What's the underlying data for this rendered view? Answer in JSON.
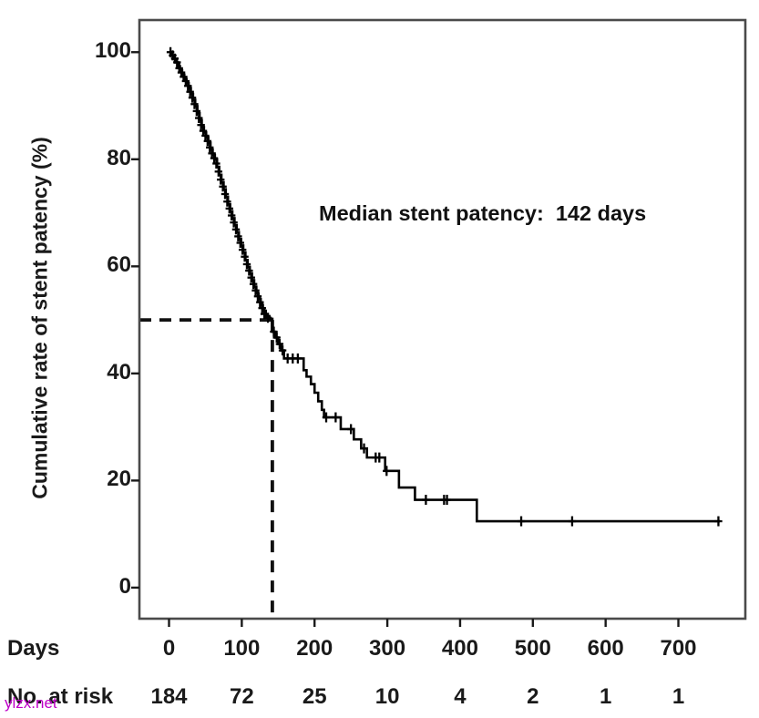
{
  "figure": {
    "y_axis_title": "Cumulative rate of stent patency (%)",
    "x_axis_row_label": "Days",
    "risk_row_label": "No. at risk",
    "annotation": "Median stent patency:  142 days",
    "watermark": "ylzx.net",
    "colors": {
      "curve": "#000000",
      "border": "#4a4a4a",
      "tick": "#1a1a1a",
      "dash": "#111111",
      "text": "#1a1a1a",
      "watermark": "#bf00c8",
      "background": "#ffffff"
    }
  },
  "chart_data": {
    "type": "line",
    "subtype": "kaplan-meier-step",
    "title": "",
    "xlabel": "Days",
    "ylabel": "Cumulative rate of stent patency (%)",
    "legend": "none",
    "grid": false,
    "xlim": [
      -40.7,
      792
    ],
    "ylim": [
      -5.8,
      106
    ],
    "x_ticks": [
      0,
      100,
      200,
      300,
      400,
      500,
      600,
      700
    ],
    "y_ticks": [
      0,
      20,
      40,
      60,
      80,
      100
    ],
    "median_day": 142,
    "median_pct": 50,
    "curve_end_day": 757,
    "steps": [
      [
        0,
        100
      ],
      [
        3,
        99.4
      ],
      [
        6,
        98.8
      ],
      [
        9,
        98.1
      ],
      [
        12,
        97.4
      ],
      [
        15,
        96.6
      ],
      [
        18,
        95.8
      ],
      [
        21,
        95.0
      ],
      [
        24,
        94.2
      ],
      [
        27,
        93.3
      ],
      [
        30,
        92.2
      ],
      [
        33,
        91.1
      ],
      [
        36,
        89.9
      ],
      [
        39,
        88.6
      ],
      [
        42,
        87.3
      ],
      [
        45,
        86.0
      ],
      [
        48,
        85.0
      ],
      [
        51,
        84.1
      ],
      [
        54,
        83.1
      ],
      [
        57,
        81.8
      ],
      [
        60,
        80.8
      ],
      [
        63,
        80.0
      ],
      [
        66,
        78.6
      ],
      [
        69,
        77.1
      ],
      [
        72,
        75.7
      ],
      [
        75,
        74.4
      ],
      [
        78,
        73.0
      ],
      [
        81,
        71.6
      ],
      [
        84,
        70.3
      ],
      [
        87,
        69.0
      ],
      [
        90,
        67.7
      ],
      [
        93,
        66.4
      ],
      [
        96,
        65.1
      ],
      [
        99,
        63.9
      ],
      [
        102,
        62.6
      ],
      [
        105,
        61.2
      ],
      [
        108,
        59.9
      ],
      [
        111,
        58.7
      ],
      [
        114,
        57.4
      ],
      [
        117,
        56.2
      ],
      [
        120,
        55.0
      ],
      [
        123,
        53.9
      ],
      [
        126,
        52.8
      ],
      [
        129,
        51.7
      ],
      [
        133,
        50.7
      ],
      [
        138,
        50.2
      ],
      [
        142,
        47.8
      ],
      [
        146,
        46.7
      ],
      [
        150,
        45.5
      ],
      [
        154,
        44.3
      ],
      [
        158,
        42.8
      ],
      [
        185,
        40.6
      ],
      [
        189,
        39.4
      ],
      [
        195,
        38.0
      ],
      [
        200,
        36.4
      ],
      [
        205,
        34.8
      ],
      [
        210,
        33.2
      ],
      [
        213,
        31.8
      ],
      [
        236,
        29.6
      ],
      [
        254,
        27.7
      ],
      [
        264,
        26.0
      ],
      [
        272,
        24.3
      ],
      [
        297,
        21.8
      ],
      [
        316,
        18.7
      ],
      [
        338,
        16.4
      ],
      [
        423,
        12.4
      ]
    ],
    "censor_marks": [
      [
        2,
        100
      ],
      [
        5,
        99.4
      ],
      [
        8,
        98.8
      ],
      [
        11,
        98.1
      ],
      [
        14,
        97.0
      ],
      [
        17,
        96.2
      ],
      [
        20,
        95.4
      ],
      [
        23,
        94.6
      ],
      [
        26,
        93.7
      ],
      [
        29,
        92.6
      ],
      [
        32,
        91.5
      ],
      [
        35,
        90.3
      ],
      [
        38,
        89.0
      ],
      [
        41,
        87.7
      ],
      [
        44,
        86.4
      ],
      [
        47,
        85.3
      ],
      [
        50,
        84.4
      ],
      [
        53,
        83.4
      ],
      [
        56,
        82.2
      ],
      [
        59,
        81.1
      ],
      [
        62,
        80.2
      ],
      [
        65,
        79.2
      ],
      [
        68,
        77.7
      ],
      [
        71,
        76.2
      ],
      [
        74,
        74.9
      ],
      [
        77,
        73.5
      ],
      [
        80,
        72.1
      ],
      [
        83,
        70.8
      ],
      [
        86,
        69.5
      ],
      [
        89,
        68.2
      ],
      [
        92,
        66.9
      ],
      [
        95,
        65.6
      ],
      [
        98,
        64.4
      ],
      [
        101,
        63.1
      ],
      [
        104,
        61.8
      ],
      [
        107,
        60.4
      ],
      [
        110,
        59.2
      ],
      [
        113,
        57.9
      ],
      [
        116,
        56.7
      ],
      [
        119,
        55.5
      ],
      [
        122,
        54.4
      ],
      [
        125,
        53.3
      ],
      [
        128,
        52.2
      ],
      [
        131,
        51.1
      ],
      [
        136,
        50.4
      ],
      [
        144,
        47.8
      ],
      [
        148,
        46.7
      ],
      [
        152,
        45.5
      ],
      [
        156,
        44.3
      ],
      [
        163,
        42.8
      ],
      [
        170,
        42.8
      ],
      [
        177,
        42.8
      ],
      [
        216,
        31.8
      ],
      [
        229,
        31.8
      ],
      [
        250,
        29.6
      ],
      [
        268,
        26.0
      ],
      [
        284,
        24.3
      ],
      [
        289,
        24.3
      ],
      [
        299,
        21.8
      ],
      [
        353,
        16.4
      ],
      [
        378,
        16.4
      ],
      [
        382,
        16.4
      ],
      [
        484,
        12.4
      ],
      [
        554,
        12.4
      ],
      [
        755,
        12.4
      ]
    ],
    "number_at_risk": {
      "days": [
        0,
        100,
        200,
        300,
        400,
        500,
        600,
        700
      ],
      "counts": [
        "184",
        "72",
        "25",
        "10",
        "4",
        "2",
        "1",
        "1"
      ]
    }
  }
}
